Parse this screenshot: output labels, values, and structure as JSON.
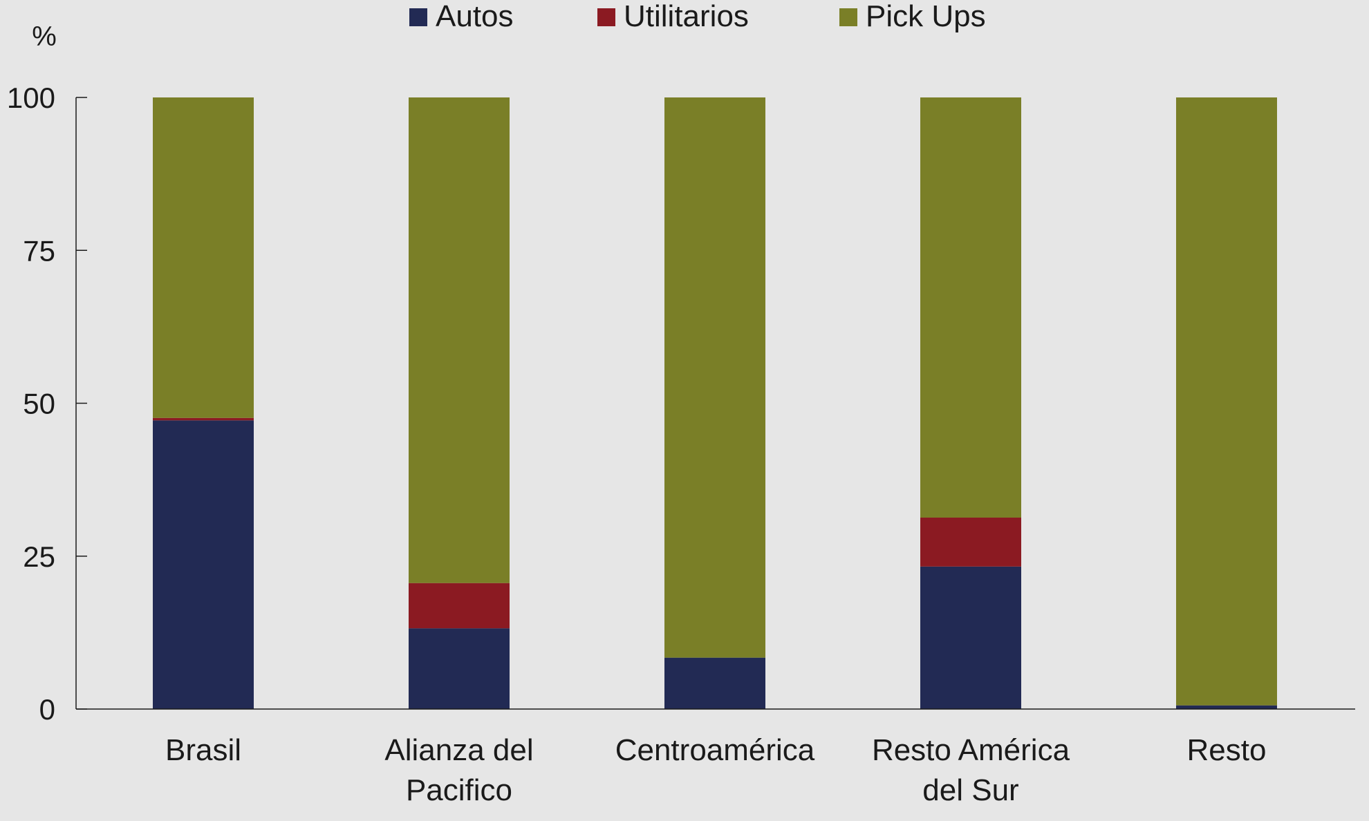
{
  "chart_data": {
    "type": "bar",
    "stacked": true,
    "unit_label": "%",
    "categories": [
      [
        "Brasil"
      ],
      [
        "Alianza del",
        "Pacifico"
      ],
      [
        "Centroamérica"
      ],
      [
        "Resto América",
        "del Sur"
      ],
      [
        "Resto"
      ]
    ],
    "series": [
      {
        "name": "Autos",
        "color": "#222a54",
        "values": [
          47.2,
          13.2,
          8.4,
          23.3,
          0.6
        ]
      },
      {
        "name": "Utilitarios",
        "color": "#8b1a22",
        "values": [
          0.4,
          7.4,
          0.0,
          8.0,
          0.0
        ]
      },
      {
        "name": "Pick Ups",
        "color": "#7a7f27",
        "values": [
          52.4,
          79.4,
          91.6,
          68.7,
          99.4
        ]
      }
    ],
    "yticks": [
      "0",
      "25",
      "50",
      "75",
      "100"
    ],
    "ylim": [
      0,
      100
    ],
    "legend_position": "top",
    "grid": false
  }
}
